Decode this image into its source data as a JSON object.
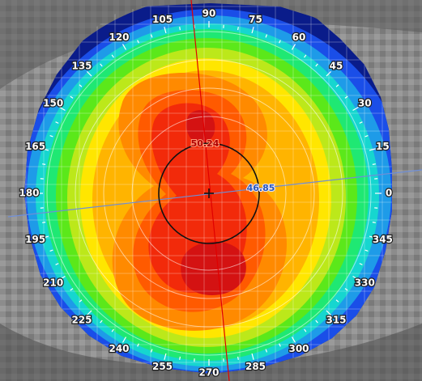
{
  "map": {
    "axis_labels": [
      "0",
      "15",
      "30",
      "45",
      "60",
      "75",
      "90",
      "105",
      "120",
      "135",
      "150",
      "165",
      "180",
      "195",
      "210",
      "225",
      "240",
      "255",
      "270",
      "285",
      "300",
      "315",
      "330",
      "345"
    ],
    "steep_k_value": "50.24",
    "flat_k_value": "46.85",
    "colors": {
      "steep_axis": "#e00000",
      "flat_axis": "#6f8ed6",
      "steep_label": "#b00000",
      "flat_label": "#2a58b8",
      "bands": [
        "#0a1c8a",
        "#1a4ee8",
        "#1e9be8",
        "#16d6cf",
        "#1fe873",
        "#5be81a",
        "#bce81a",
        "#ffe600",
        "#ffb400",
        "#ff8a00",
        "#ff5a00",
        "#f22a0a",
        "#d41212"
      ]
    }
  }
}
